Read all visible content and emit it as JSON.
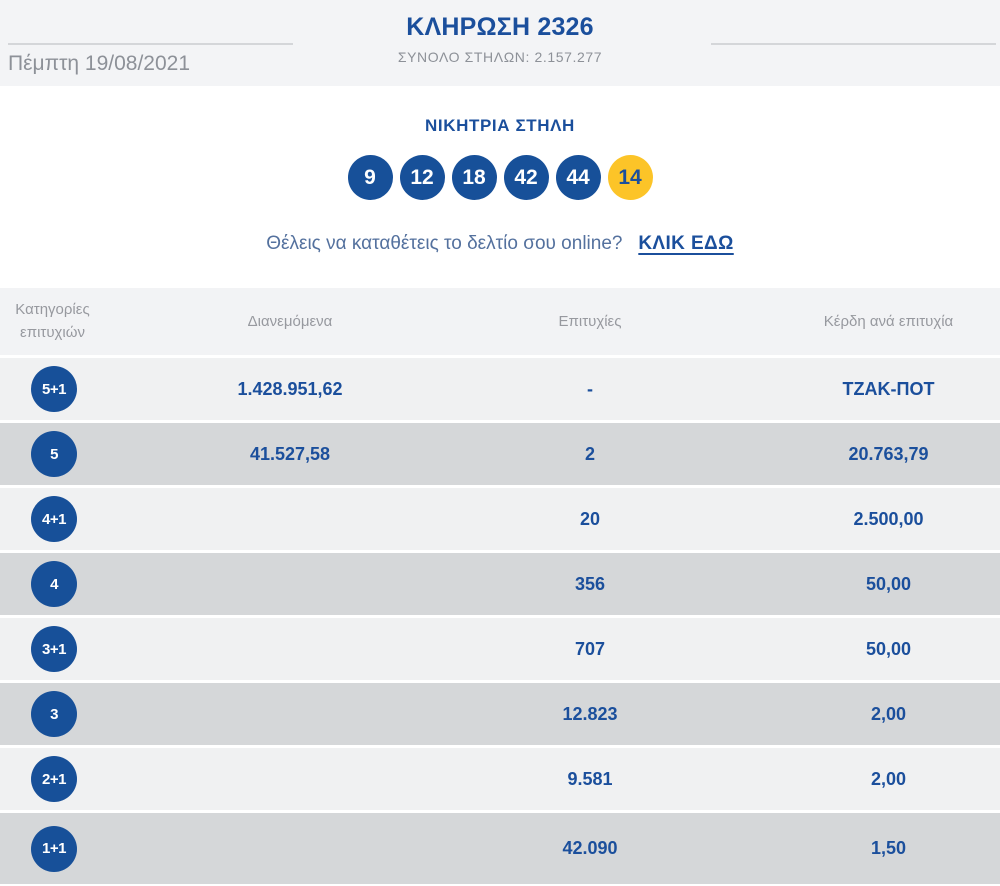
{
  "colors": {
    "brand_blue": "#175099",
    "accent_yellow": "#fcc428",
    "muted_text": "#8d9198",
    "row_light": "#f0f1f2",
    "row_dark": "#d5d7d9",
    "header_bg": "#f3f4f6"
  },
  "header": {
    "title": "ΚΛΗΡΩΣΗ 2326",
    "date": "Πέμπτη 19/08/2021",
    "total_columns": "ΣΥΝΟΛΟ ΣΤΗΛΩΝ: 2.157.277"
  },
  "winning": {
    "title": "ΝΙΚΗΤΡΙΑ ΣΤΗΛΗ",
    "numbers": [
      "9",
      "12",
      "18",
      "42",
      "44"
    ],
    "joker": "14"
  },
  "cta": {
    "question": "Θέλεις να καταθέτεις το δελτίο σου online?",
    "link_label": "ΚΛΙΚ ΕΔΩ"
  },
  "table": {
    "headers": {
      "category": "Κατηγορίες επιτυχιών",
      "distributed": "Διανεμόμενα",
      "wins": "Επιτυχίες",
      "prize": "Κέρδη ανά επιτυχία"
    },
    "rows": [
      {
        "category": "5+1",
        "distributed": "1.428.951,62",
        "wins": "-",
        "prize": "ΤΖΑΚ-ΠΟΤ"
      },
      {
        "category": "5",
        "distributed": "41.527,58",
        "wins": "2",
        "prize": "20.763,79"
      },
      {
        "category": "4+1",
        "distributed": "",
        "wins": "20",
        "prize": "2.500,00"
      },
      {
        "category": "4",
        "distributed": "",
        "wins": "356",
        "prize": "50,00"
      },
      {
        "category": "3+1",
        "distributed": "",
        "wins": "707",
        "prize": "50,00"
      },
      {
        "category": "3",
        "distributed": "",
        "wins": "12.823",
        "prize": "2,00"
      },
      {
        "category": "2+1",
        "distributed": "",
        "wins": "9.581",
        "prize": "2,00"
      },
      {
        "category": "1+1",
        "distributed": "",
        "wins": "42.090",
        "prize": "1,50"
      }
    ]
  }
}
